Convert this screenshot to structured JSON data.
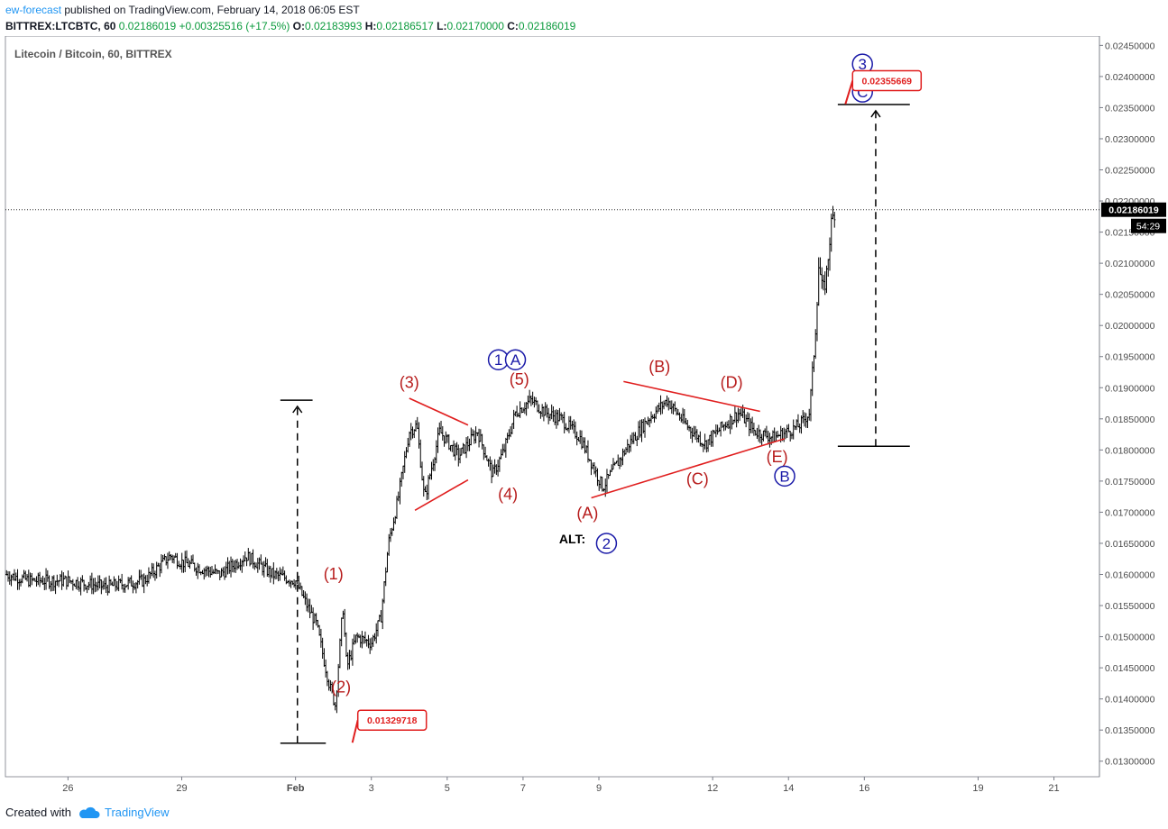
{
  "header": {
    "user": "ew-forecast",
    "published": "published on TradingView.com, February 14, 2018 06:05 EST",
    "symbol": "BITTREX:LTCBTC, 60",
    "last": "0.02186019",
    "change": "+0.00325516 (+17.5%)",
    "o_label": "O:",
    "o": "0.02183993",
    "h_label": "H:",
    "h": "0.02186517",
    "l_label": "L:",
    "l": "0.02170000",
    "c_label": "C:",
    "c": "0.02186019"
  },
  "chart_title": "Litecoin / Bitcoin, 60, BITTREX",
  "price_badge": {
    "price": "0.02186019",
    "countdown": "54:29"
  },
  "footer": {
    "created": "Created with",
    "brand": "TradingView",
    "logo_icon": "tradingview-cloud-icon"
  },
  "colors": {
    "accent_red": "#e01e1e",
    "wave_blue": "#1a1aa8",
    "wave_red": "#b71c1c",
    "candle": "#000000",
    "up": "#0a9a3c"
  },
  "chart_data": {
    "type": "candlestick",
    "y_ticks": [
      "0.01300000",
      "0.01350000",
      "0.01400000",
      "0.01450000",
      "0.01500000",
      "0.01550000",
      "0.01600000",
      "0.01650000",
      "0.01700000",
      "0.01750000",
      "0.01800000",
      "0.01850000",
      "0.01900000",
      "0.01950000",
      "0.02000000",
      "0.02050000",
      "0.02100000",
      "0.02150000",
      "0.02200000",
      "0.02250000",
      "0.02300000",
      "0.02350000",
      "0.02400000",
      "0.02450000"
    ],
    "ylim": [
      0.01275,
      0.02465
    ],
    "x_ticks": [
      {
        "label": "26",
        "day": -6
      },
      {
        "label": "29",
        "day": -3
      },
      {
        "label": "Feb",
        "day": 0
      },
      {
        "label": "3",
        "day": 2
      },
      {
        "label": "5",
        "day": 4
      },
      {
        "label": "7",
        "day": 6
      },
      {
        "label": "9",
        "day": 8
      },
      {
        "label": "12",
        "day": 11
      },
      {
        "label": "14",
        "day": 13
      },
      {
        "label": "16",
        "day": 15
      },
      {
        "label": "19",
        "day": 18
      },
      {
        "label": "21",
        "day": 20
      }
    ],
    "xlim_days": [
      -7.65,
      21.2
    ],
    "price_path": [
      [
        -7.62,
        0.016
      ],
      [
        -7.0,
        0.0159
      ],
      [
        -6.0,
        0.0159
      ],
      [
        -5.0,
        0.0158
      ],
      [
        -4.0,
        0.0159
      ],
      [
        -3.3,
        0.0163
      ],
      [
        -3.0,
        0.0162
      ],
      [
        -2.0,
        0.016
      ],
      [
        -1.3,
        0.0163
      ],
      [
        -0.6,
        0.016
      ],
      [
        0.0,
        0.0159
      ],
      [
        0.3,
        0.0155
      ],
      [
        0.55,
        0.0152
      ],
      [
        0.9,
        0.0142
      ],
      [
        1.05,
        0.0139
      ],
      [
        1.25,
        0.0155
      ],
      [
        1.35,
        0.0145
      ],
      [
        1.6,
        0.015
      ],
      [
        2.0,
        0.0149
      ],
      [
        2.25,
        0.0153
      ],
      [
        2.45,
        0.0165
      ],
      [
        2.7,
        0.0172
      ],
      [
        3.0,
        0.0183
      ],
      [
        3.2,
        0.0184
      ],
      [
        3.4,
        0.0172
      ],
      [
        3.8,
        0.0183
      ],
      [
        4.3,
        0.0179
      ],
      [
        4.8,
        0.0183
      ],
      [
        5.2,
        0.0176
      ],
      [
        5.5,
        0.018
      ],
      [
        5.8,
        0.0186
      ],
      [
        6.2,
        0.0188
      ],
      [
        6.6,
        0.0186
      ],
      [
        7.0,
        0.0185
      ],
      [
        7.5,
        0.0182
      ],
      [
        8.1,
        0.0174
      ],
      [
        8.4,
        0.0177
      ],
      [
        8.8,
        0.0181
      ],
      [
        9.3,
        0.0185
      ],
      [
        9.8,
        0.0188
      ],
      [
        10.3,
        0.0184
      ],
      [
        10.8,
        0.0181
      ],
      [
        11.3,
        0.0184
      ],
      [
        11.7,
        0.0186
      ],
      [
        12.1,
        0.0183
      ],
      [
        12.6,
        0.0182
      ],
      [
        13.0,
        0.0183
      ],
      [
        13.3,
        0.0184
      ],
      [
        13.55,
        0.0186
      ],
      [
        13.7,
        0.0198
      ],
      [
        13.8,
        0.021
      ],
      [
        13.9,
        0.0205
      ],
      [
        14.0,
        0.0208
      ],
      [
        14.12,
        0.0216
      ],
      [
        14.22,
        0.02186
      ]
    ],
    "current_price": 0.02186019,
    "annotations": {
      "low_price_label": "0.01329718",
      "low_price": 0.01329718,
      "target_price_label": "0.02355669",
      "target_price": 0.02355669,
      "waves": [
        {
          "text": "(1)",
          "color": "red",
          "day": 1.0,
          "price": 0.01592
        },
        {
          "text": "(2)",
          "color": "red",
          "day": 1.2,
          "price": 0.0141
        },
        {
          "text": "(3)",
          "color": "red",
          "day": 3.0,
          "price": 0.019
        },
        {
          "text": "(4)",
          "color": "red",
          "day": 5.6,
          "price": 0.0172
        },
        {
          "text": "(5)",
          "color": "red",
          "day": 5.9,
          "price": 0.01905
        },
        {
          "text": "(A)",
          "color": "red",
          "day": 7.7,
          "price": 0.0169
        },
        {
          "text": "(B)",
          "color": "red",
          "day": 9.6,
          "price": 0.01925
        },
        {
          "text": "(C)",
          "color": "red",
          "day": 10.6,
          "price": 0.01745
        },
        {
          "text": "(D)",
          "color": "red",
          "day": 11.5,
          "price": 0.019
        },
        {
          "text": "(E)",
          "color": "red",
          "day": 12.7,
          "price": 0.0178
        },
        {
          "text": "ALT:",
          "color": "black",
          "day": 7.3,
          "price": 0.0165
        }
      ],
      "circled": [
        {
          "text": "1",
          "day": 5.35,
          "price": 0.01945
        },
        {
          "text": "A",
          "day": 5.8,
          "price": 0.01945
        },
        {
          "text": "B",
          "day": 12.9,
          "price": 0.01758
        },
        {
          "text": "2",
          "day": 8.2,
          "price": 0.0165
        },
        {
          "text": "C",
          "day": 14.95,
          "price": 0.02375
        },
        {
          "text": "3",
          "day": 14.95,
          "price": 0.0242
        }
      ]
    }
  }
}
